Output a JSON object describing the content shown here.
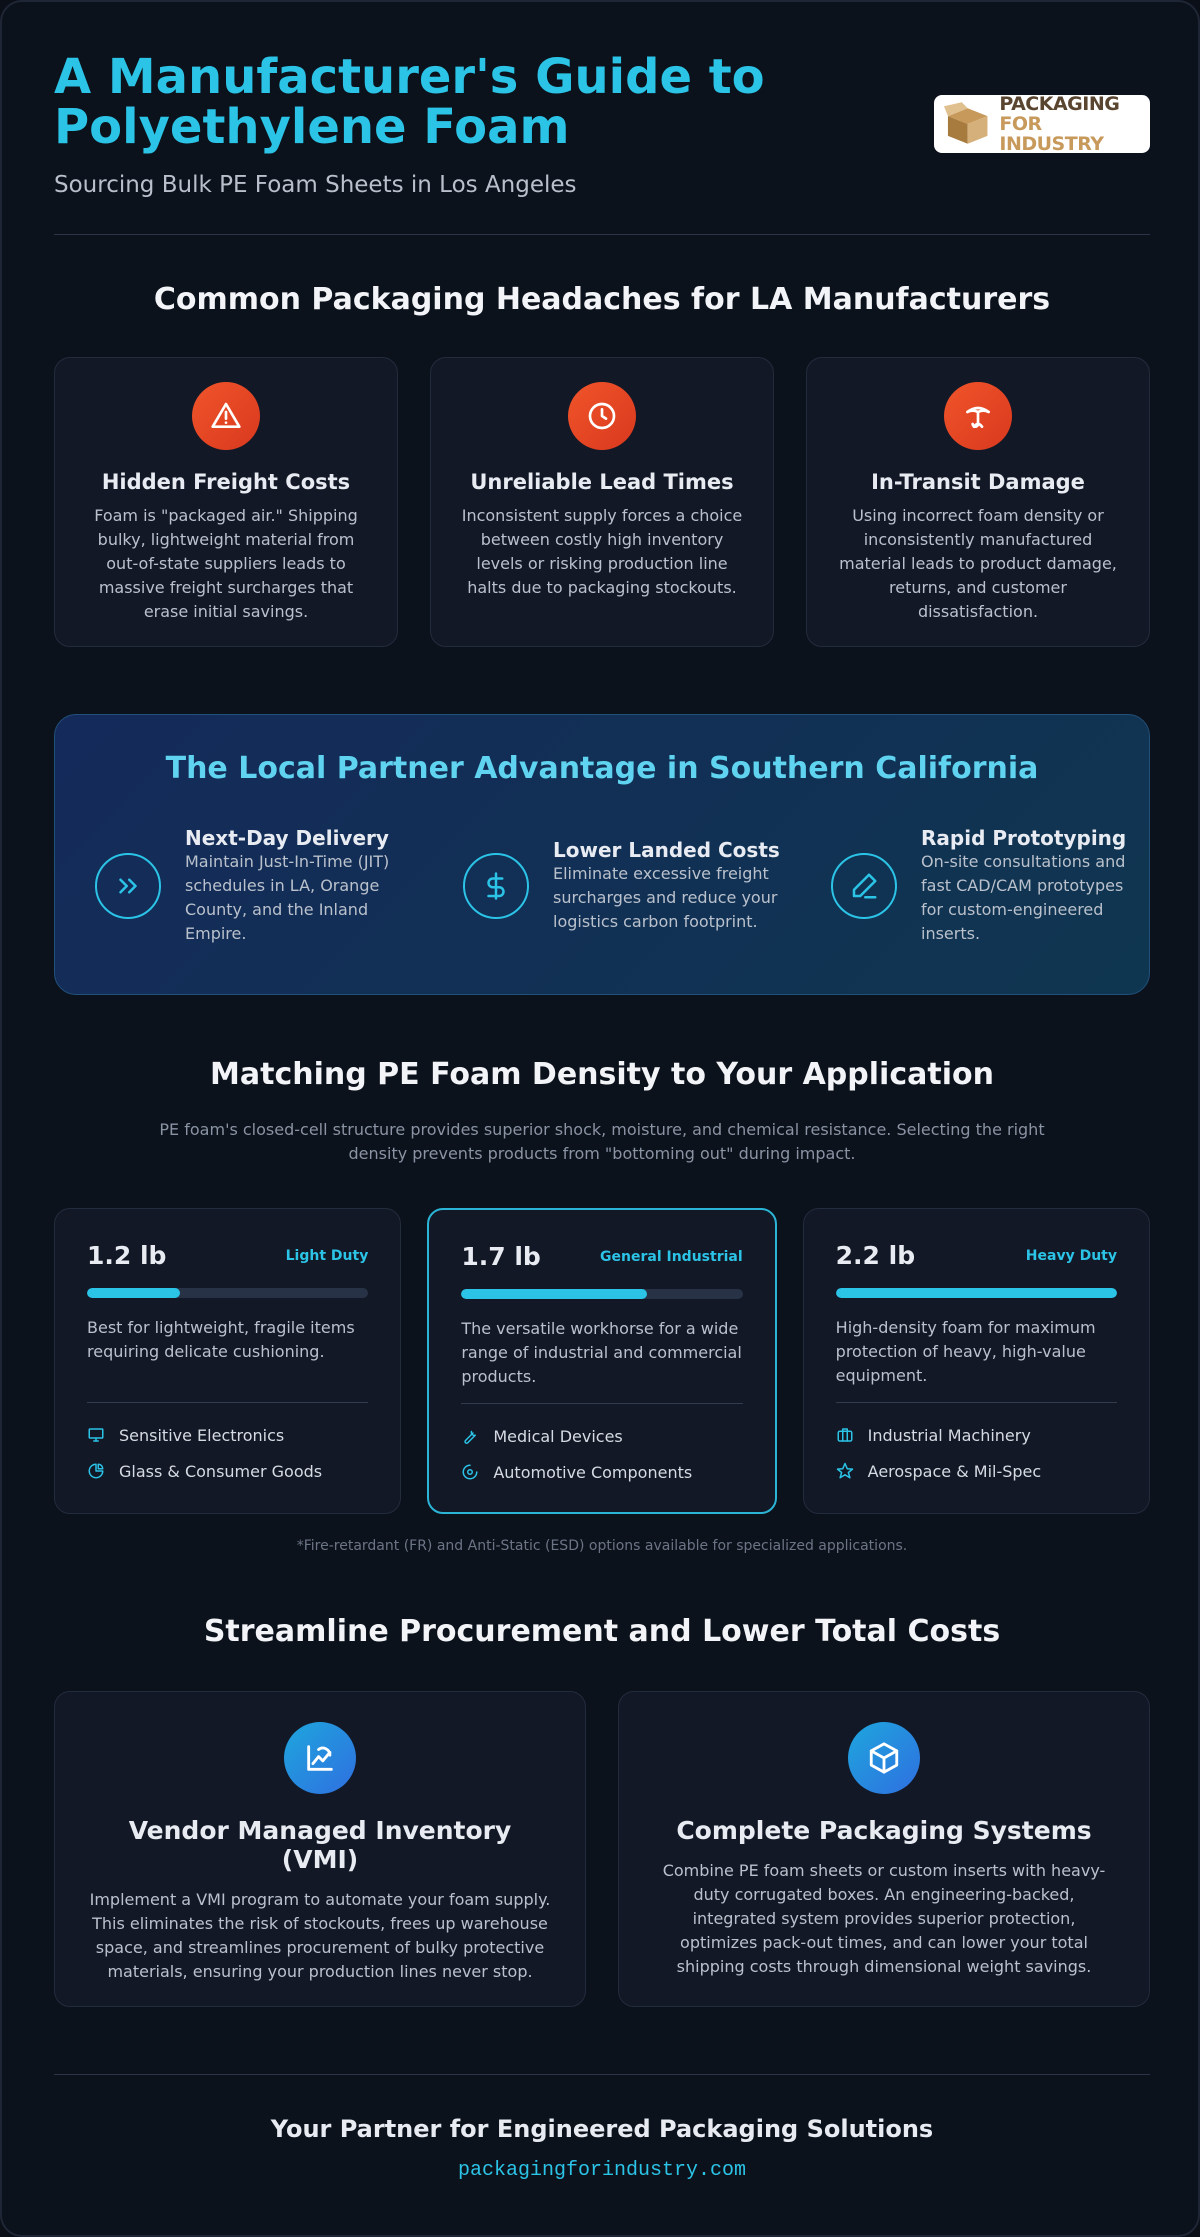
{
  "header": {
    "title": "A Manufacturer's Guide to Polyethylene Foam",
    "subtitle": "Sourcing Bulk PE Foam Sheets in Los Angeles",
    "logo": [
      "PACKAGING",
      "FOR INDUSTRY"
    ]
  },
  "problems": {
    "heading": "Common Packaging Headaches for LA Manufacturers",
    "cards": [
      {
        "title": "Hidden Freight Costs",
        "text": "Foam is \"packaged air.\" Shipping bulky, lightweight material from out-of-state suppliers leads to massive freight surcharges that erase initial savings."
      },
      {
        "title": "Unreliable Lead Times",
        "text": "Inconsistent supply forces a choice between costly high inventory levels or risking production line halts due to packaging stockouts."
      },
      {
        "title": "In-Transit Damage",
        "text": "Using incorrect foam density or inconsistently manufactured material leads to product damage, returns, and customer dissatisfaction."
      }
    ]
  },
  "advantage": {
    "heading": "The Local Partner Advantage in Southern California",
    "items": [
      {
        "title": "Next-Day Delivery",
        "text": "Maintain Just-In-Time (JIT) schedules in LA, Orange County, and the Inland Empire."
      },
      {
        "title": "Lower Landed Costs",
        "text": "Eliminate excessive freight surcharges and reduce your logistics carbon footprint."
      },
      {
        "title": "Rapid Prototyping",
        "text": "On-site consultations and fast CAD/CAM prototypes for custom-engineered inserts."
      }
    ]
  },
  "density": {
    "heading": "Matching PE Foam Density to Your Application",
    "intro": "PE foam's closed-cell structure provides superior shock, moisture, and chemical resistance. Selecting the right density prevents products from \"bottoming out\" during impact.",
    "cards": [
      {
        "weight": "1.2 lb",
        "duty": "Light Duty",
        "level": 33,
        "text": "Best for lightweight, fragile items requiring delicate cushioning.",
        "uses": [
          "Sensitive Electronics",
          "Glass & Consumer Goods"
        ]
      },
      {
        "weight": "1.7 lb",
        "duty": "General Industrial",
        "level": 66,
        "text": "The versatile workhorse for a wide range of industrial and commercial products.",
        "uses": [
          "Medical Devices",
          "Automotive Components"
        ]
      },
      {
        "weight": "2.2 lb",
        "duty": "Heavy Duty",
        "level": 100,
        "text": "High-density foam for maximum protection of heavy, high-value equipment.",
        "uses": [
          "Industrial Machinery",
          "Aerospace & Mil-Spec"
        ]
      }
    ],
    "footnote": "*Fire-retardant (FR) and Anti-Static (ESD) options available for specialized applications."
  },
  "procurement": {
    "heading": "Streamline Procurement and Lower Total Costs",
    "cards": [
      {
        "title": "Vendor Managed Inventory (VMI)",
        "text": "Implement a VMI program to automate your foam supply. This eliminates the risk of stockouts, frees up warehouse space, and streamlines procurement of bulky protective materials, ensuring your production lines never stop."
      },
      {
        "title": "Complete Packaging Systems",
        "text": "Combine PE foam sheets or custom inserts with heavy-duty corrugated boxes. An engineering-backed, integrated system provides superior protection, optimizes pack-out times, and can lower your total shipping costs through dimensional weight savings."
      }
    ]
  },
  "footer": {
    "tagline": "Your Partner for Engineered Packaging Solutions",
    "url": "packagingforindustry.com"
  }
}
